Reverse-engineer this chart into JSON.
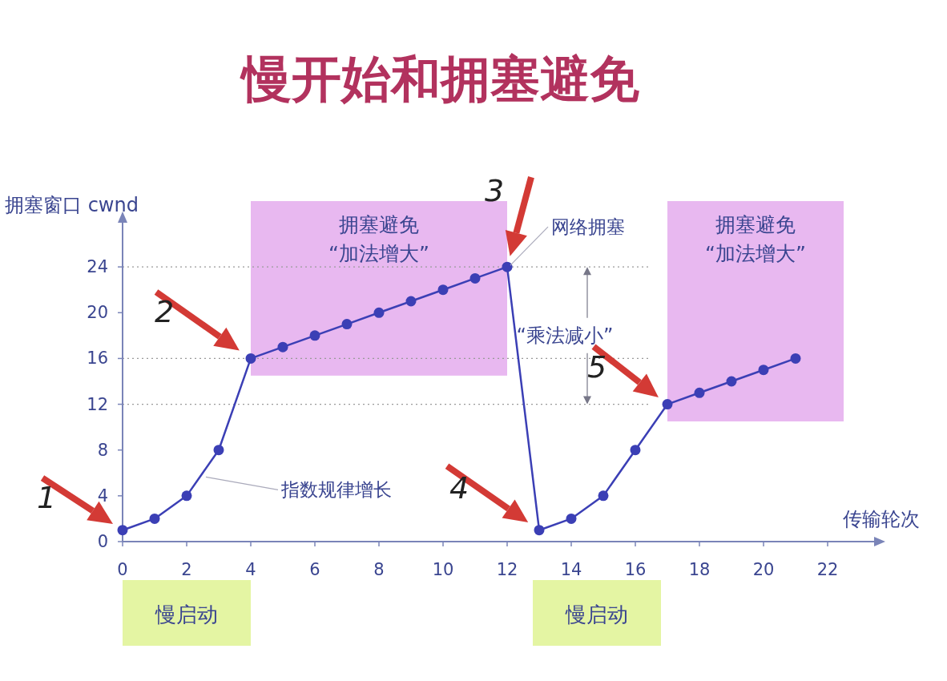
{
  "chart_data": {
    "type": "line",
    "title": "慢开始和拥塞避免",
    "xlabel": "传输轮次",
    "ylabel": "拥塞窗口 cwnd",
    "x": [
      0,
      1,
      2,
      3,
      4,
      5,
      6,
      7,
      8,
      9,
      10,
      11,
      12,
      13,
      14,
      15,
      16,
      17,
      18,
      19,
      20,
      21
    ],
    "series": [
      {
        "color": "#3b3fb5",
        "values": [
          1,
          2,
          4,
          8,
          16,
          17,
          18,
          19,
          20,
          21,
          22,
          23,
          24,
          1,
          2,
          4,
          8,
          12,
          13,
          14,
          15,
          16
        ]
      }
    ],
    "xlim": [
      0,
      23.5
    ],
    "ylim": [
      0,
      28
    ],
    "xticks": [
      0,
      2,
      4,
      6,
      8,
      10,
      12,
      14,
      16,
      18,
      20,
      22
    ],
    "yticks": [
      0,
      4,
      8,
      12,
      16,
      20,
      24
    ],
    "marker": "circle",
    "line_style": "solid",
    "grid": false,
    "ref_lines": [
      {
        "axis": "y",
        "value": 24,
        "color": "#999999",
        "line_style": "dotted"
      },
      {
        "axis": "y",
        "value": 16,
        "color": "#999999",
        "line_style": "dotted"
      },
      {
        "axis": "y",
        "value": 12,
        "color": "#999999",
        "line_style": "dotted"
      }
    ],
    "bands": [
      {
        "axis": "x",
        "from": 4,
        "to": 12,
        "label": "拥塞避免 “加法增大”",
        "color": "#e8b8f0"
      },
      {
        "axis": "x",
        "from": 17,
        "to": 22.5,
        "label": "拥塞避免 “加法增大”",
        "color": "#e8b8f0"
      }
    ],
    "annotations": [
      {
        "text": "1",
        "x": 0,
        "y": 1
      },
      {
        "text": "2",
        "x": 4,
        "y": 16
      },
      {
        "text": "3",
        "x": 12,
        "y": 24
      },
      {
        "text": "4",
        "x": 13,
        "y": 1
      },
      {
        "text": "5",
        "x": 17,
        "y": 12
      },
      {
        "text": "网络拥塞",
        "x": 12,
        "y": 24
      },
      {
        "text": "指数规律增长",
        "x": 2.5,
        "y": 5.5
      },
      {
        "text": "“乘法减小”",
        "x": 14.5,
        "y": 12
      },
      "慢启动",
      "慢启动"
    ]
  }
}
